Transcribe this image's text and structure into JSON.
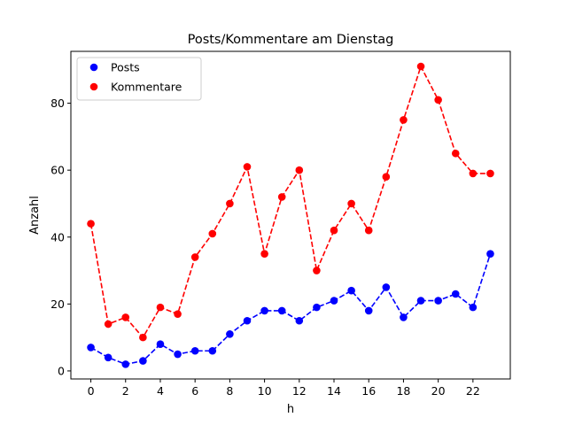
{
  "chart_data": {
    "type": "line",
    "title": "Posts/Kommentare am Dienstag",
    "xlabel": "h",
    "ylabel": "Anzahl",
    "x": [
      0,
      1,
      2,
      3,
      4,
      5,
      6,
      7,
      8,
      9,
      10,
      11,
      12,
      13,
      14,
      15,
      16,
      17,
      18,
      19,
      20,
      21,
      22,
      23
    ],
    "xlim": [
      -1.15,
      24.15
    ],
    "ylim": [
      -2.4,
      95.5
    ],
    "xticks": [
      0,
      2,
      4,
      6,
      8,
      10,
      12,
      14,
      16,
      18,
      20,
      22
    ],
    "yticks": [
      0,
      20,
      40,
      60,
      80
    ],
    "grid": false,
    "legend_position": "upper-left",
    "series": [
      {
        "name": "Posts",
        "color": "#0000ff",
        "linestyle": "dashed",
        "marker": "circle",
        "values": [
          7,
          4,
          2,
          3,
          8,
          5,
          6,
          6,
          11,
          15,
          18,
          18,
          15,
          19,
          21,
          24,
          18,
          25,
          16,
          21,
          21,
          23,
          19,
          35
        ]
      },
      {
        "name": "Kommentare",
        "color": "#ff0000",
        "linestyle": "dashed",
        "marker": "circle",
        "values": [
          44,
          14,
          16,
          10,
          19,
          17,
          34,
          41,
          50,
          61,
          35,
          52,
          60,
          30,
          42,
          50,
          42,
          58,
          75,
          91,
          81,
          65,
          59,
          59
        ]
      }
    ]
  }
}
